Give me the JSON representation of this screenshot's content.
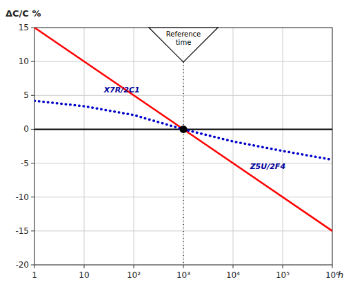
{
  "chart_data": {
    "type": "line",
    "log": "x",
    "grid": true,
    "xlabel": "h",
    "ylabel": "ΔC/C %",
    "xlim": [
      1,
      1000000
    ],
    "ylim": [
      -20,
      15
    ],
    "xticks": [
      1,
      10,
      {
        "value": 100,
        "label": "10²"
      },
      {
        "value": 1000,
        "label": "10³"
      },
      {
        "value": 10000,
        "label": "10⁴"
      },
      {
        "value": 100000,
        "label": "10⁵"
      },
      {
        "value": 1000000,
        "label": "10⁶"
      }
    ],
    "yticks": [
      -20,
      -15,
      -10,
      -5,
      0,
      5,
      10,
      15
    ],
    "series": [
      {
        "color": "#FF0000",
        "line_style": "solid",
        "x": [
          1,
          1000000
        ],
        "values": [
          15.0,
          -15.0
        ]
      },
      {
        "color": "#0000CC",
        "line_style": "dotted",
        "x": [
          1,
          10,
          100,
          1000,
          10000,
          100000,
          1000000
        ],
        "values": [
          4.2,
          3.4,
          2.1,
          0.0,
          -1.8,
          -3.2,
          -4.5
        ]
      }
    ],
    "hlines": [
      {
        "y": 0,
        "color": "#000000",
        "line_style": "solid"
      }
    ],
    "vlines": [
      {
        "x": 1000,
        "color": "#000000",
        "line_style": "dotted"
      }
    ],
    "points": [
      {
        "x": 1000,
        "y": 0,
        "color": "#000000"
      }
    ],
    "annotations": [
      {
        "text": "Reference\ntime",
        "x": 1000,
        "y": 14.2,
        "color": "#000000"
      },
      {
        "text": "X7R/2C1",
        "x": 25,
        "y": 5.0,
        "color": "#000099"
      },
      {
        "text": "Z5U/2F4",
        "x": 22000,
        "y": -4.5,
        "color": "#000099"
      }
    ]
  }
}
